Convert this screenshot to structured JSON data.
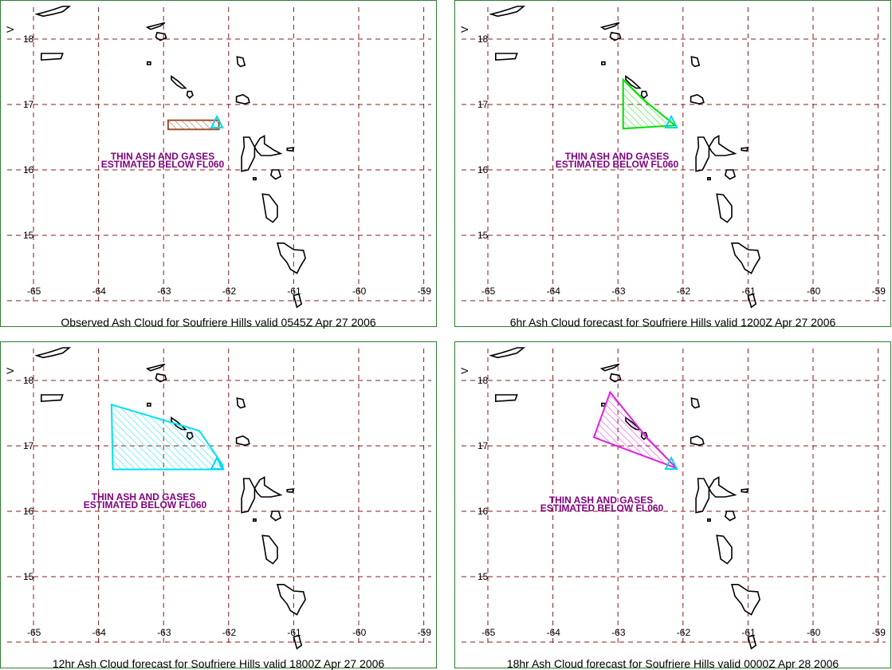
{
  "map_common": {
    "lon_labels": [
      "-65",
      "-64",
      "-63",
      "-62",
      "-61",
      "-60",
      "-59"
    ],
    "lat_labels": [
      "18",
      "17",
      "16",
      "15"
    ],
    "grid_color": "#8b1a1a",
    "coast_color": "#000000",
    "volcano_color": "#00d8e8",
    "ash_text_color": "#800080",
    "north_arrow_label": "V"
  },
  "panels": [
    {
      "caption": "Observed Ash Cloud for Soufriere  Hills valid 0545Z Apr 27 2006",
      "ash_text_line1": "THIN ASH AND GASES",
      "ash_text_line2": "ESTIMATED BELOW FL060",
      "cloud_color": "#a0522d",
      "cloud_polygon_lonlat": [
        [
          -62.93,
          16.76
        ],
        [
          -62.15,
          16.76
        ],
        [
          -62.15,
          16.62
        ],
        [
          -62.93,
          16.62
        ]
      ]
    },
    {
      "caption": "6hr Ash Cloud forecast for Soufriere  Hills valid 1200Z Apr 27 2006",
      "ash_text_line1": "THIN ASH AND GASES",
      "ash_text_line2": "ESTIMATED BELOW FL060",
      "cloud_color": "#00e000",
      "cloud_polygon_lonlat": [
        [
          -62.92,
          17.38
        ],
        [
          -62.58,
          17.05
        ],
        [
          -62.12,
          16.68
        ],
        [
          -62.92,
          16.63
        ]
      ]
    },
    {
      "caption": "12hr Ash Cloud forecast for Soufriere  Hills valid 1800Z Apr 27 2006",
      "ash_text_line1": "THIN ASH AND GASES",
      "ash_text_line2": "ESTIMATED BELOW FL060",
      "cloud_color": "#00e0f0",
      "cloud_polygon_lonlat": [
        [
          -63.8,
          17.63
        ],
        [
          -62.45,
          17.23
        ],
        [
          -62.1,
          16.72
        ],
        [
          -62.08,
          16.64
        ],
        [
          -63.78,
          16.64
        ]
      ]
    },
    {
      "caption": "18hr Ash Cloud forecast for Soufriere  Hills valid 0000Z Apr 28 2006",
      "ash_text_line1": "THIN ASH AND GASES",
      "ash_text_line2": "ESTIMATED BELOW FL060",
      "cloud_color": "#e020e0",
      "cloud_polygon_lonlat": [
        [
          -63.12,
          17.82
        ],
        [
          -62.55,
          17.12
        ],
        [
          -62.1,
          16.66
        ],
        [
          -63.37,
          17.13
        ]
      ]
    }
  ]
}
